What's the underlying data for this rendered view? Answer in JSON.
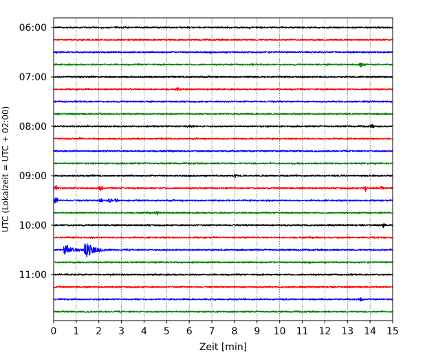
{
  "chart_data": {
    "type": "line",
    "title": "",
    "xlabel": "Zeit  [min]",
    "ylabel": "UTC (Lokalzeit = UTC + 02:00)",
    "xlim": [
      0,
      15
    ],
    "x_ticks": [
      "0",
      "1",
      "2",
      "3",
      "4",
      "5",
      "6",
      "7",
      "8",
      "9",
      "10",
      "11",
      "12",
      "13",
      "14",
      "15"
    ],
    "y_ticks": [
      "06:00",
      "07:00",
      "08:00",
      "09:00",
      "10:00",
      "11:00"
    ],
    "grid": "vertical dotted at each minute",
    "line_colors": [
      "#000000",
      "#ff0000",
      "#0000ff",
      "#008000"
    ],
    "series": [
      {
        "start": "06:00",
        "color": "#000000"
      },
      {
        "start": "06:15",
        "color": "#ff0000"
      },
      {
        "start": "06:30",
        "color": "#0000ff"
      },
      {
        "start": "06:45",
        "color": "#008000",
        "events": [
          {
            "x": 13.6,
            "amplitude": 0.35
          }
        ]
      },
      {
        "start": "07:00",
        "color": "#000000"
      },
      {
        "start": "07:15",
        "color": "#ff0000",
        "events": [
          {
            "x": 5.5,
            "amplitude": 0.35
          }
        ]
      },
      {
        "start": "07:30",
        "color": "#0000ff"
      },
      {
        "start": "07:45",
        "color": "#008000"
      },
      {
        "start": "08:00",
        "color": "#000000",
        "events": [
          {
            "x": 6.1,
            "amplitude": 0.3
          },
          {
            "x": 14.1,
            "amplitude": 0.35
          }
        ]
      },
      {
        "start": "08:15",
        "color": "#ff0000"
      },
      {
        "start": "08:30",
        "color": "#0000ff"
      },
      {
        "start": "08:45",
        "color": "#008000"
      },
      {
        "start": "09:00",
        "color": "#000000",
        "events": [
          {
            "x": 8.0,
            "amplitude": 0.3
          }
        ]
      },
      {
        "start": "09:15",
        "color": "#ff0000",
        "events": [
          {
            "x": 0.1,
            "amplitude": 0.45
          },
          {
            "x": 2.1,
            "amplitude": 0.55
          },
          {
            "x": 13.8,
            "amplitude": 0.6
          },
          {
            "x": 14.5,
            "amplitude": 0.3
          }
        ]
      },
      {
        "start": "09:30",
        "color": "#0000ff",
        "events": [
          {
            "x": 0.1,
            "amplitude": 0.55
          },
          {
            "x": 2.1,
            "amplitude": 0.35
          },
          {
            "x": 2.5,
            "amplitude": 0.35
          },
          {
            "x": 2.8,
            "amplitude": 0.35
          }
        ]
      },
      {
        "start": "09:45",
        "color": "#008000",
        "events": [
          {
            "x": 4.6,
            "amplitude": 0.3
          }
        ]
      },
      {
        "start": "10:00",
        "color": "#000000",
        "events": [
          {
            "x": 14.6,
            "amplitude": 0.3
          }
        ]
      },
      {
        "start": "10:15",
        "color": "#ff0000"
      },
      {
        "start": "10:30",
        "color": "#0000ff",
        "events": [
          {
            "x": 0.6,
            "amplitude": 0.7
          },
          {
            "x": 1.5,
            "amplitude": 1.1
          }
        ]
      },
      {
        "start": "10:45",
        "color": "#008000"
      },
      {
        "start": "11:00",
        "color": "#000000"
      },
      {
        "start": "11:15",
        "color": "#ff0000"
      },
      {
        "start": "11:30",
        "color": "#0000ff",
        "events": [
          {
            "x": 13.6,
            "amplitude": 0.3
          }
        ]
      },
      {
        "start": "11:45",
        "color": "#008000"
      }
    ]
  }
}
